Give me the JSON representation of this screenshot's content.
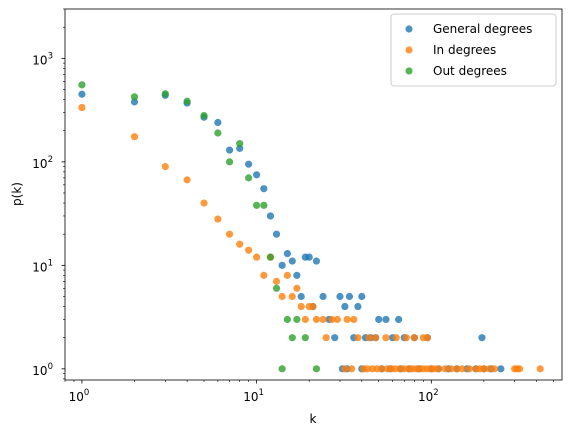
{
  "chart_data": {
    "type": "scatter",
    "title": "",
    "xlabel": "k",
    "ylabel": "p(k)",
    "xscale": "log",
    "yscale": "log",
    "xlim": [
      0.8,
      560
    ],
    "ylim": [
      0.78,
      3000
    ],
    "grid": false,
    "legend_position": "top-right",
    "x_ticks": [
      {
        "value": 1,
        "base": "10",
        "exp": "0"
      },
      {
        "value": 10,
        "base": "10",
        "exp": "1"
      },
      {
        "value": 100,
        "base": "10",
        "exp": "2"
      }
    ],
    "y_ticks": [
      {
        "value": 1,
        "base": "10",
        "exp": "0"
      },
      {
        "value": 10,
        "base": "10",
        "exp": "1"
      },
      {
        "value": 100,
        "base": "10",
        "exp": "2"
      },
      {
        "value": 1000,
        "base": "10",
        "exp": "3"
      }
    ],
    "series": [
      {
        "name": "General degrees",
        "color": "#1f77b4",
        "points": [
          [
            1,
            450
          ],
          [
            2,
            380
          ],
          [
            3,
            440
          ],
          [
            4,
            370
          ],
          [
            5,
            270
          ],
          [
            6,
            240
          ],
          [
            7,
            130
          ],
          [
            8,
            135
          ],
          [
            9,
            95
          ],
          [
            10,
            75
          ],
          [
            11,
            55
          ],
          [
            12,
            30
          ],
          [
            13,
            20
          ],
          [
            14,
            10
          ],
          [
            15,
            13
          ],
          [
            16,
            11
          ],
          [
            17,
            8
          ],
          [
            18,
            5
          ],
          [
            19,
            12
          ],
          [
            20,
            12
          ],
          [
            21,
            4
          ],
          [
            22,
            11
          ],
          [
            24,
            5
          ],
          [
            26,
            3
          ],
          [
            28,
            2
          ],
          [
            30,
            5
          ],
          [
            32,
            4
          ],
          [
            34,
            5
          ],
          [
            36,
            2
          ],
          [
            38,
            4
          ],
          [
            40,
            5
          ],
          [
            42,
            2
          ],
          [
            45,
            2
          ],
          [
            48,
            2
          ],
          [
            50,
            3
          ],
          [
            55,
            3
          ],
          [
            60,
            2
          ],
          [
            65,
            3
          ],
          [
            70,
            2
          ],
          [
            80,
            2
          ],
          [
            95,
            2
          ],
          [
            195,
            2
          ],
          [
            31,
            1
          ],
          [
            33,
            1
          ],
          [
            40,
            1
          ],
          [
            52,
            1
          ],
          [
            58,
            1
          ],
          [
            67,
            1
          ],
          [
            75,
            1
          ],
          [
            85,
            1
          ],
          [
            100,
            1
          ],
          [
            110,
            1
          ],
          [
            125,
            1
          ],
          [
            140,
            1
          ],
          [
            160,
            1
          ],
          [
            180,
            1
          ],
          [
            200,
            1
          ],
          [
            220,
            1
          ],
          [
            250,
            1
          ]
        ]
      },
      {
        "name": "In degrees",
        "color": "#ff7f0e",
        "points": [
          [
            1,
            335
          ],
          [
            2,
            175
          ],
          [
            3,
            90
          ],
          [
            4,
            67
          ],
          [
            5,
            40
          ],
          [
            6,
            28
          ],
          [
            7,
            20
          ],
          [
            8,
            16
          ],
          [
            9,
            14
          ],
          [
            10,
            12
          ],
          [
            11,
            8
          ],
          [
            12,
            12
          ],
          [
            13,
            7
          ],
          [
            14,
            5
          ],
          [
            15,
            8
          ],
          [
            16,
            5
          ],
          [
            17,
            6
          ],
          [
            18,
            4
          ],
          [
            19,
            3
          ],
          [
            20,
            4
          ],
          [
            21,
            4
          ],
          [
            22,
            3
          ],
          [
            24,
            3
          ],
          [
            25,
            2
          ],
          [
            27,
            3
          ],
          [
            29,
            3
          ],
          [
            33,
            3
          ],
          [
            36,
            3
          ],
          [
            38,
            2
          ],
          [
            44,
            2
          ],
          [
            48,
            2
          ],
          [
            55,
            2
          ],
          [
            63,
            2
          ],
          [
            72,
            2
          ],
          [
            80,
            2
          ],
          [
            90,
            2
          ],
          [
            95,
            2
          ],
          [
            32,
            1
          ],
          [
            35,
            1
          ],
          [
            41,
            1
          ],
          [
            43,
            1
          ],
          [
            46,
            1
          ],
          [
            49,
            1
          ],
          [
            52,
            1
          ],
          [
            56,
            1
          ],
          [
            59,
            1
          ],
          [
            62,
            1
          ],
          [
            66,
            1
          ],
          [
            70,
            1
          ],
          [
            74,
            1
          ],
          [
            78,
            1
          ],
          [
            82,
            1
          ],
          [
            86,
            1
          ],
          [
            90,
            1
          ],
          [
            95,
            1
          ],
          [
            100,
            1
          ],
          [
            105,
            1
          ],
          [
            110,
            1
          ],
          [
            120,
            1
          ],
          [
            130,
            1
          ],
          [
            140,
            1
          ],
          [
            150,
            1
          ],
          [
            165,
            1
          ],
          [
            180,
            1
          ],
          [
            190,
            1
          ],
          [
            200,
            1
          ],
          [
            215,
            1
          ],
          [
            230,
            1
          ],
          [
            300,
            1
          ],
          [
            310,
            1
          ],
          [
            320,
            1
          ],
          [
            420,
            1
          ]
        ]
      },
      {
        "name": "Out degrees",
        "color": "#2ca02c",
        "points": [
          [
            1,
            555
          ],
          [
            2,
            425
          ],
          [
            3,
            455
          ],
          [
            4,
            385
          ],
          [
            5,
            280
          ],
          [
            6,
            190
          ],
          [
            7,
            100
          ],
          [
            8,
            150
          ],
          [
            9,
            70
          ],
          [
            10,
            38
          ],
          [
            11,
            38
          ],
          [
            12,
            12
          ],
          [
            13,
            6
          ],
          [
            14,
            1
          ],
          [
            15,
            3
          ],
          [
            16,
            2
          ],
          [
            17,
            3
          ],
          [
            19,
            2
          ],
          [
            22,
            1
          ]
        ]
      }
    ]
  }
}
